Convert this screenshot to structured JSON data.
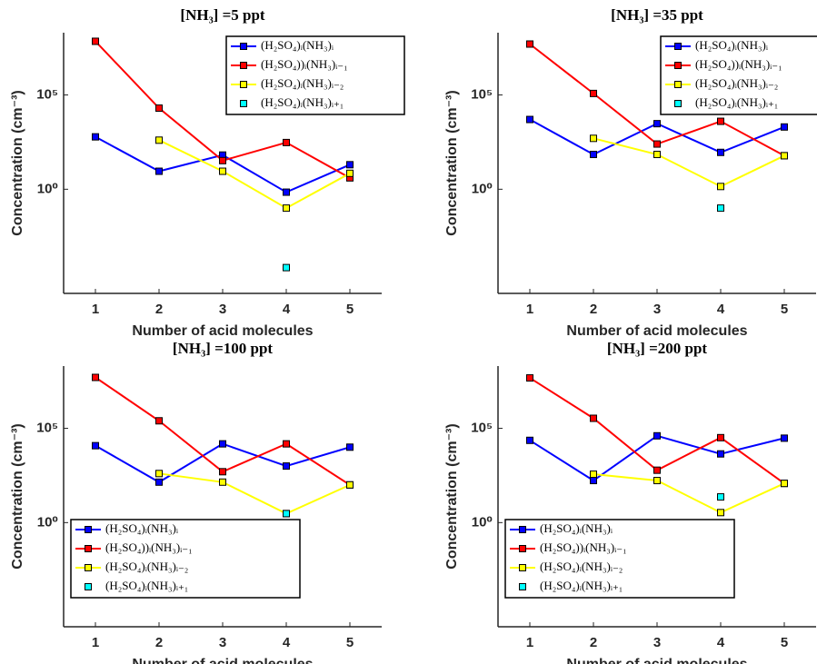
{
  "chart_data": [
    {
      "type": "line",
      "title": "[NH₃] =5 ppt",
      "x_label": "Number of acid molecules",
      "y_label": "Concentration (cm⁻³)",
      "x": [
        1,
        2,
        3,
        4,
        5
      ],
      "xlim": [
        0.5,
        5.5
      ],
      "xticks": [
        1,
        2,
        3,
        4,
        5
      ],
      "ylim": [
        3e-06,
        200000000
      ],
      "log_y": true,
      "yticks": [
        {
          "value": 1,
          "label": "10⁰"
        },
        {
          "value": 100000,
          "label": "10⁵"
        }
      ],
      "grid": false,
      "legend": "upper right",
      "series": [
        {
          "name": "(H₂SO₄)ᵢ(NH₃)ᵢ",
          "color": "#0000ff",
          "line": true,
          "values": [
            600,
            9,
            65,
            0.7,
            20
          ]
        },
        {
          "name": "(H₂SO₄))ᵢ(NH₃)ᵢ₋₁",
          "color": "#ff0000",
          "line": true,
          "values": [
            70000000,
            20000,
            33,
            300,
            4
          ]
        },
        {
          "name": "(H₂SO₄)ᵢ(NH₃)ᵢ₋₂",
          "color": "#ffff00",
          "line": true,
          "values": [
            null,
            400,
            9,
            0.1,
            7
          ]
        },
        {
          "name": "(H₂SO₄)ᵢ(NH₃)ᵢ₊₁",
          "color": "#00ffff",
          "line": false,
          "values": [
            null,
            null,
            null,
            7e-05,
            null
          ]
        }
      ]
    },
    {
      "type": "line",
      "title": "[NH₃] =35 ppt",
      "x_label": "Number of acid molecules",
      "y_label": "Concentration (cm⁻³)",
      "x": [
        1,
        2,
        3,
        4,
        5
      ],
      "xlim": [
        0.5,
        5.5
      ],
      "xticks": [
        1,
        2,
        3,
        4,
        5
      ],
      "ylim": [
        3e-06,
        200000000
      ],
      "log_y": true,
      "yticks": [
        {
          "value": 1,
          "label": "10⁰"
        },
        {
          "value": 100000,
          "label": "10⁵"
        }
      ],
      "grid": false,
      "legend": "upper right",
      "series": [
        {
          "name": "(H₂SO₄)ᵢ(NH₃)ᵢ",
          "color": "#0000ff",
          "line": true,
          "values": [
            5000,
            70,
            3000,
            90,
            2000
          ]
        },
        {
          "name": "(H₂SO₄))ᵢ(NH₃)ᵢ₋₁",
          "color": "#ff0000",
          "line": true,
          "values": [
            50000000,
            120000,
            250,
            4000,
            60
          ]
        },
        {
          "name": "(H₂SO₄)ᵢ(NH₃)ᵢ₋₂",
          "color": "#ffff00",
          "line": true,
          "values": [
            null,
            500,
            70,
            1.4,
            60
          ]
        },
        {
          "name": "(H₂SO₄)ᵢ(NH₃)ᵢ₊₁",
          "color": "#00ffff",
          "line": false,
          "values": [
            null,
            null,
            null,
            0.1,
            null
          ]
        }
      ]
    },
    {
      "type": "line",
      "title": "[NH₃] =100 ppt",
      "x_label": "Number of acid molecules",
      "y_label": "Concentration (cm⁻³)",
      "x": [
        1,
        2,
        3,
        4,
        5
      ],
      "xlim": [
        0.5,
        5.5
      ],
      "xticks": [
        1,
        2,
        3,
        4,
        5
      ],
      "ylim": [
        3e-06,
        200000000
      ],
      "log_y": true,
      "yticks": [
        {
          "value": 1,
          "label": "10⁰"
        },
        {
          "value": 100000,
          "label": "10⁵"
        }
      ],
      "grid": false,
      "legend": "lower left",
      "series": [
        {
          "name": "(H₂SO₄)ᵢ(NH₃)ᵢ",
          "color": "#0000ff",
          "line": true,
          "values": [
            12000,
            140,
            15000,
            1000,
            10000
          ]
        },
        {
          "name": "(H₂SO₄))ᵢ(NH₃)ᵢ₋₁",
          "color": "#ff0000",
          "line": true,
          "values": [
            50000000,
            250000,
            500,
            15000,
            100
          ]
        },
        {
          "name": "(H₂SO₄)ᵢ(NH₃)ᵢ₋₂",
          "color": "#ffff00",
          "line": true,
          "values": [
            null,
            400,
            140,
            3,
            100
          ]
        },
        {
          "name": "(H₂SO₄)ᵢ(NH₃)ᵢ₊₁",
          "color": "#00ffff",
          "line": false,
          "values": [
            null,
            null,
            null,
            3,
            null
          ]
        }
      ]
    },
    {
      "type": "line",
      "title": "[NH₃] =200 ppt",
      "x_label": "Number of acid molecules",
      "y_label": "Concentration (cm⁻³)",
      "x": [
        1,
        2,
        3,
        4,
        5
      ],
      "xlim": [
        0.5,
        5.5
      ],
      "xticks": [
        1,
        2,
        3,
        4,
        5
      ],
      "ylim": [
        3e-06,
        200000000
      ],
      "log_y": true,
      "yticks": [
        {
          "value": 1,
          "label": "10⁰"
        },
        {
          "value": 100000,
          "label": "10⁵"
        }
      ],
      "grid": false,
      "legend": "lower left",
      "series": [
        {
          "name": "(H₂SO₄)ᵢ(NH₃)ᵢ",
          "color": "#0000ff",
          "line": true,
          "values": [
            23000,
            170,
            40000,
            4400,
            30000
          ]
        },
        {
          "name": "(H₂SO₄))ᵢ(NH₃)ᵢ₋₁",
          "color": "#ff0000",
          "line": true,
          "values": [
            47000000,
            340000,
            600,
            32000,
            120
          ]
        },
        {
          "name": "(H₂SO₄)ᵢ(NH₃)ᵢ₋₂",
          "color": "#ffff00",
          "line": true,
          "values": [
            null,
            370,
            170,
            3.4,
            120
          ]
        },
        {
          "name": "(H₂SO₄)ᵢ(NH₃)ᵢ₊₁",
          "color": "#00ffff",
          "line": false,
          "values": [
            null,
            null,
            null,
            23,
            null
          ]
        }
      ]
    }
  ]
}
